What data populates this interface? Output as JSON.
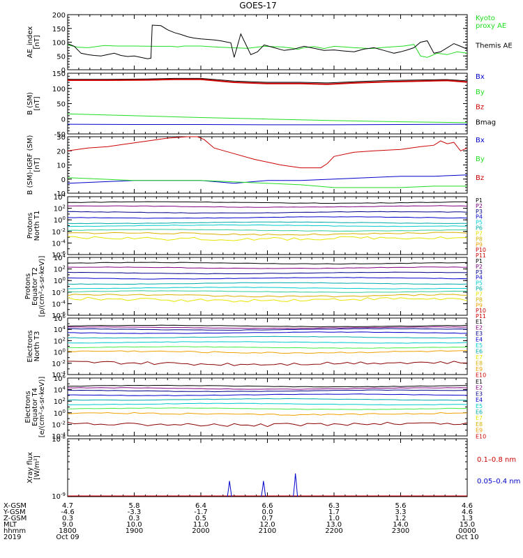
{
  "title": "GOES-17",
  "colors": {
    "black": "#000000",
    "green": "#22dd22",
    "blue": "#0000cc",
    "red": "#cc0000",
    "darkred": "#8b0000",
    "navy": "#00008b",
    "lime": "#44ee44",
    "cyan": "#00cccc",
    "teal": "#00aaaa",
    "mint": "#33cc99",
    "yellow": "#e6e600",
    "orange": "#f0a000",
    "gold": "#d9b000",
    "purple": "#800080"
  },
  "chart_data": [
    {
      "type": "line",
      "ylabel": "AE_index\n[nT]",
      "ylim": [
        0,
        200
      ],
      "yticks": [
        "0",
        "50",
        "100",
        "150",
        "200"
      ],
      "legend": [
        "Kyoto\nproxy AE",
        "Themis AE"
      ],
      "series": [
        {
          "name": "Kyoto proxy AE",
          "color": "green",
          "x": [
            0,
            0.15,
            0.3,
            0.55,
            0.75,
            1.0,
            1.3,
            1.55,
            1.65,
            1.75,
            2.0,
            2.2,
            2.45,
            2.7,
            2.95,
            3.2,
            3.4,
            3.45,
            3.55,
            3.7,
            3.85,
            4.0,
            4.15,
            4.3,
            4.55,
            4.8,
            5.05,
            5.2,
            5.3,
            5.4,
            5.55,
            5.7,
            5.85,
            6.0
          ],
          "y": [
            90,
            82,
            80,
            88,
            86,
            86,
            85,
            85,
            83,
            86,
            86,
            83,
            80,
            78,
            85,
            83,
            78,
            74,
            80,
            84,
            77,
            85,
            83,
            80,
            77,
            82,
            86,
            92,
            50,
            45,
            60,
            55,
            65,
            60
          ]
        },
        {
          "name": "Themis AE",
          "color": "black",
          "x": [
            0,
            0.1,
            0.2,
            0.3,
            0.4,
            0.5,
            0.6,
            0.7,
            0.8,
            0.9,
            1.0,
            1.1,
            1.2,
            1.25,
            1.27,
            1.4,
            1.5,
            1.6,
            1.7,
            1.8,
            1.9,
            2.0,
            2.1,
            2.2,
            2.3,
            2.4,
            2.45,
            2.5,
            2.6,
            2.75,
            2.85,
            2.95,
            3.1,
            3.25,
            3.4,
            3.55,
            3.7,
            3.85,
            4.0,
            4.15,
            4.3,
            4.45,
            4.6,
            4.75,
            4.9,
            5.0,
            5.1,
            5.2,
            5.3,
            5.4,
            5.5,
            5.6,
            5.7,
            5.8,
            5.9,
            6.0
          ],
          "y": [
            95,
            85,
            60,
            55,
            52,
            50,
            55,
            60,
            52,
            48,
            50,
            45,
            40,
            42,
            162,
            160,
            145,
            135,
            128,
            120,
            115,
            112,
            110,
            108,
            105,
            100,
            98,
            45,
            130,
            55,
            65,
            90,
            80,
            70,
            75,
            85,
            78,
            70,
            72,
            68,
            65,
            75,
            80,
            70,
            60,
            65,
            72,
            80,
            100,
            105,
            60,
            65,
            80,
            95,
            85,
            75
          ]
        }
      ]
    },
    {
      "type": "line",
      "ylabel": "B (SM)\n[nT]",
      "ylim": [
        -50,
        150
      ],
      "yticks": [
        "-50",
        "0",
        "50",
        "100",
        "150"
      ],
      "legend": [
        "Bx",
        "By",
        "Bz",
        "Bmag"
      ],
      "series": [
        {
          "name": "Bmag",
          "color": "black",
          "x": [
            0,
            0.6,
            1.2,
            1.6,
            2.0,
            2.5,
            3.0,
            3.5,
            3.9,
            4.3,
            4.8,
            5.3,
            5.7,
            6.0
          ],
          "y": [
            130,
            130,
            131,
            133,
            133,
            124,
            120,
            120,
            118,
            122,
            126,
            128,
            129,
            125
          ]
        },
        {
          "name": "Bz",
          "color": "red",
          "x": [
            0,
            0.6,
            1.2,
            1.6,
            2.0,
            2.5,
            3.0,
            3.5,
            3.9,
            4.3,
            4.8,
            5.3,
            5.7,
            6.0
          ],
          "y": [
            127,
            127,
            128,
            130,
            130,
            120,
            116,
            116,
            114,
            118,
            122,
            124,
            126,
            121
          ]
        },
        {
          "name": "By",
          "color": "green",
          "x": [
            0,
            1,
            2,
            3,
            4,
            5,
            6
          ],
          "y": [
            16,
            10,
            4,
            -1,
            -6,
            -10,
            -13
          ]
        },
        {
          "name": "Bx",
          "color": "blue",
          "x": [
            0,
            1,
            2,
            3,
            4,
            5,
            6
          ],
          "y": [
            -18,
            -19,
            -19,
            -20,
            -20,
            -19,
            -18
          ]
        }
      ]
    },
    {
      "type": "line",
      "ylabel": "B (SM)-IGRF (SM)\n[nT]",
      "ylim": [
        -10,
        30
      ],
      "yticks": [
        "-10",
        "0",
        "10",
        "20",
        "30"
      ],
      "legend": [
        "Bx",
        "By",
        "Bz"
      ],
      "series": [
        {
          "name": "Bz",
          "color": "red",
          "x": [
            0,
            0.3,
            0.6,
            0.9,
            1.2,
            1.5,
            1.8,
            1.95,
            2.05,
            2.2,
            2.5,
            2.8,
            3.0,
            3.2,
            3.5,
            3.8,
            3.9,
            4.0,
            4.3,
            4.6,
            5.0,
            5.3,
            5.5,
            5.6,
            5.7,
            5.8,
            5.9,
            6.0
          ],
          "y": [
            20,
            22,
            23,
            25,
            27,
            29,
            30,
            30,
            28,
            22,
            18,
            14,
            12,
            10,
            8,
            8,
            11,
            16,
            19,
            20,
            21,
            23,
            24,
            27,
            25,
            26,
            20,
            22
          ]
        },
        {
          "name": "Bx",
          "color": "blue",
          "x": [
            0,
            0.5,
            1.0,
            1.5,
            2.0,
            2.5,
            3.0,
            3.5,
            4.0,
            4.5,
            5.0,
            5.5,
            6.0
          ],
          "y": [
            -3,
            -2,
            -1,
            -1,
            -1,
            -3,
            -1,
            -1,
            0,
            1,
            2,
            2,
            3
          ]
        },
        {
          "name": "By",
          "color": "green",
          "x": [
            0,
            0.5,
            1.0,
            1.5,
            2.0,
            2.5,
            3.0,
            3.5,
            4.0,
            4.5,
            5.0,
            5.5,
            6.0
          ],
          "y": [
            1,
            0,
            -1,
            -1,
            -1,
            -2,
            -3,
            -4,
            -6,
            -6,
            -6,
            -5,
            -5
          ]
        }
      ]
    },
    {
      "type": "line",
      "ylabel": "Protons\nNorth T1",
      "yscale": "log",
      "ylim_exp": [
        -6,
        4
      ],
      "yticks": [
        "10^-6",
        "10^-4",
        "10^-2",
        "10^0",
        "10^2",
        "10^4"
      ],
      "legend": [
        "P1",
        "P2",
        "P3",
        "P4",
        "P5",
        "P6",
        "P7",
        "P8",
        "P9",
        "P10",
        "P11"
      ],
      "levels_exp": [
        3.0,
        2.3,
        1.3,
        0.4,
        -0.5,
        -1.0,
        -1.8,
        -2.4,
        -3.2
      ],
      "level_colors": [
        "black",
        "purple",
        "navy",
        "blue",
        "teal",
        "cyan",
        "mint",
        "gold",
        "yellow"
      ]
    },
    {
      "type": "line",
      "ylabel": "Protons\nEquator T2\n[p/(cm²-s-sr-keV)]",
      "yscale": "log",
      "ylim_exp": [
        -6,
        4
      ],
      "yticks": [
        "10^-6",
        "10^-4",
        "10^-2",
        "10^0",
        "10^2",
        "10^4"
      ],
      "legend": [
        "P1",
        "P2",
        "P3",
        "P4",
        "P5",
        "P6",
        "P7",
        "P8",
        "P9",
        "P10",
        "P11"
      ],
      "levels_exp": [
        3.0,
        2.2,
        1.3,
        0.4,
        -0.5,
        -1.3,
        -1.9,
        -2.6,
        -3.3
      ],
      "level_colors": [
        "black",
        "purple",
        "navy",
        "blue",
        "teal",
        "cyan",
        "mint",
        "gold",
        "yellow"
      ]
    },
    {
      "type": "line",
      "ylabel": "Electrons\nNorth T3",
      "yscale": "log",
      "ylim_exp": [
        -4,
        6
      ],
      "yticks": [
        "10^-4",
        "10^-2",
        "10^0",
        "10^2",
        "10^4",
        "10^6"
      ],
      "legend": [
        "E1",
        "E2",
        "E3",
        "E4",
        "E5",
        "E6",
        "E7",
        "E8",
        "E9",
        "E10"
      ],
      "levels_exp": [
        4.6,
        4.3,
        4.0,
        3.4,
        2.6,
        1.7,
        0.8,
        0.0,
        -2.0
      ],
      "level_colors": [
        "black",
        "purple",
        "navy",
        "blue",
        "teal",
        "cyan",
        "lime",
        "orange",
        "darkred"
      ]
    },
    {
      "type": "line",
      "ylabel": "Electrons\nEquator T4\n[e/(cm²-s-sr-keV)]",
      "yscale": "log",
      "ylim_exp": [
        -4,
        6
      ],
      "yticks": [
        "10^-4",
        "10^-2",
        "10^0",
        "10^2",
        "10^4",
        "10^6"
      ],
      "legend": [
        "E1",
        "E2",
        "E3",
        "E4",
        "E5",
        "E6",
        "E7",
        "E8",
        "E9",
        "E10"
      ],
      "levels_exp": [
        4.6,
        4.2,
        3.8,
        3.1,
        2.3,
        1.5,
        0.7,
        -0.2,
        -2.0
      ],
      "level_colors": [
        "black",
        "purple",
        "navy",
        "blue",
        "teal",
        "cyan",
        "lime",
        "orange",
        "darkred"
      ]
    },
    {
      "type": "line",
      "ylabel": "Xray flux\n[W/m²]",
      "yscale": "log",
      "ylim_exp": [
        -9,
        -8
      ],
      "yticks": [
        "10^-9",
        "10^-8"
      ],
      "legend": [
        "0.1–0.8 nm",
        "0.05–0.4 nm"
      ],
      "series": [
        {
          "name": "0.05–0.4 nm",
          "color": "blue",
          "spikes_x": [
            2.43,
            2.94,
            3.42
          ],
          "spikes_height": [
            0.27,
            0.27,
            0.4
          ]
        }
      ]
    }
  ],
  "x_axis": {
    "labels": [
      "X-GSM",
      "Y-GSM",
      "Z-GSM",
      "MLT",
      "hhmm",
      "2019"
    ],
    "columns": [
      [
        "4.7",
        "-4.6",
        "0.3",
        "9.0",
        "1800",
        "Oct 09"
      ],
      [
        "5.8",
        "-3.3",
        "0.3",
        "10.0",
        "1900",
        ""
      ],
      [
        "6.4",
        "-1.7",
        "0.5",
        "11.0",
        "2000",
        ""
      ],
      [
        "6.6",
        "0.0",
        "0.7",
        "12.0",
        "2100",
        ""
      ],
      [
        "6.3",
        "1.7",
        "1.0",
        "13.0",
        "2200",
        ""
      ],
      [
        "5.6",
        "3.3",
        "1.2",
        "14.0",
        "2300",
        ""
      ],
      [
        "4.6",
        "4.6",
        "1.3",
        "15.0",
        "0000",
        "Oct 10"
      ]
    ]
  }
}
